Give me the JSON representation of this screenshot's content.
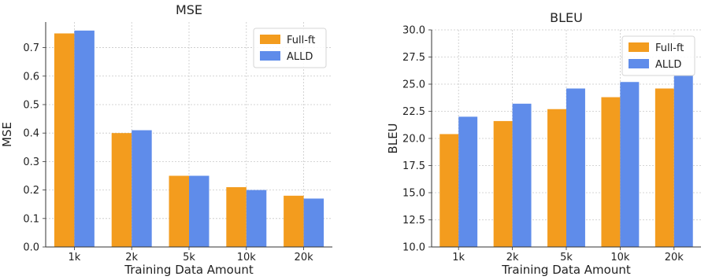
{
  "chart_data": [
    {
      "type": "bar",
      "title": "MSE",
      "xlabel": "Training Data Amount",
      "ylabel": "MSE",
      "categories": [
        "1k",
        "2k",
        "5k",
        "10k",
        "20k"
      ],
      "series": [
        {
          "name": "Full-ft",
          "color": "#F39C1E",
          "values": [
            0.75,
            0.4,
            0.25,
            0.21,
            0.18
          ]
        },
        {
          "name": "ALLD",
          "color": "#5F8CEA",
          "values": [
            0.76,
            0.41,
            0.25,
            0.2,
            0.17
          ]
        }
      ],
      "ylim": [
        0.0,
        0.79
      ],
      "yticks": [
        "0.0",
        "0.1",
        "0.2",
        "0.3",
        "0.4",
        "0.5",
        "0.6",
        "0.7"
      ],
      "grid": true,
      "legend_position": "top-right"
    },
    {
      "type": "bar",
      "title": "BLEU",
      "xlabel": "Training Data Amount",
      "ylabel": "BLEU",
      "categories": [
        "1k",
        "2k",
        "5k",
        "10k",
        "20k"
      ],
      "series": [
        {
          "name": "Full-ft",
          "color": "#F39C1E",
          "values": [
            20.4,
            21.6,
            22.7,
            23.8,
            24.6
          ]
        },
        {
          "name": "ALLD",
          "color": "#5F8CEA",
          "values": [
            22.0,
            23.2,
            24.6,
            25.2,
            25.8
          ]
        }
      ],
      "ylim": [
        10.0,
        30.0
      ],
      "yticks": [
        "10.0",
        "12.5",
        "15.0",
        "17.5",
        "20.0",
        "22.5",
        "25.0",
        "27.5",
        "30.0"
      ],
      "grid": true,
      "legend_position": "top-right"
    }
  ]
}
